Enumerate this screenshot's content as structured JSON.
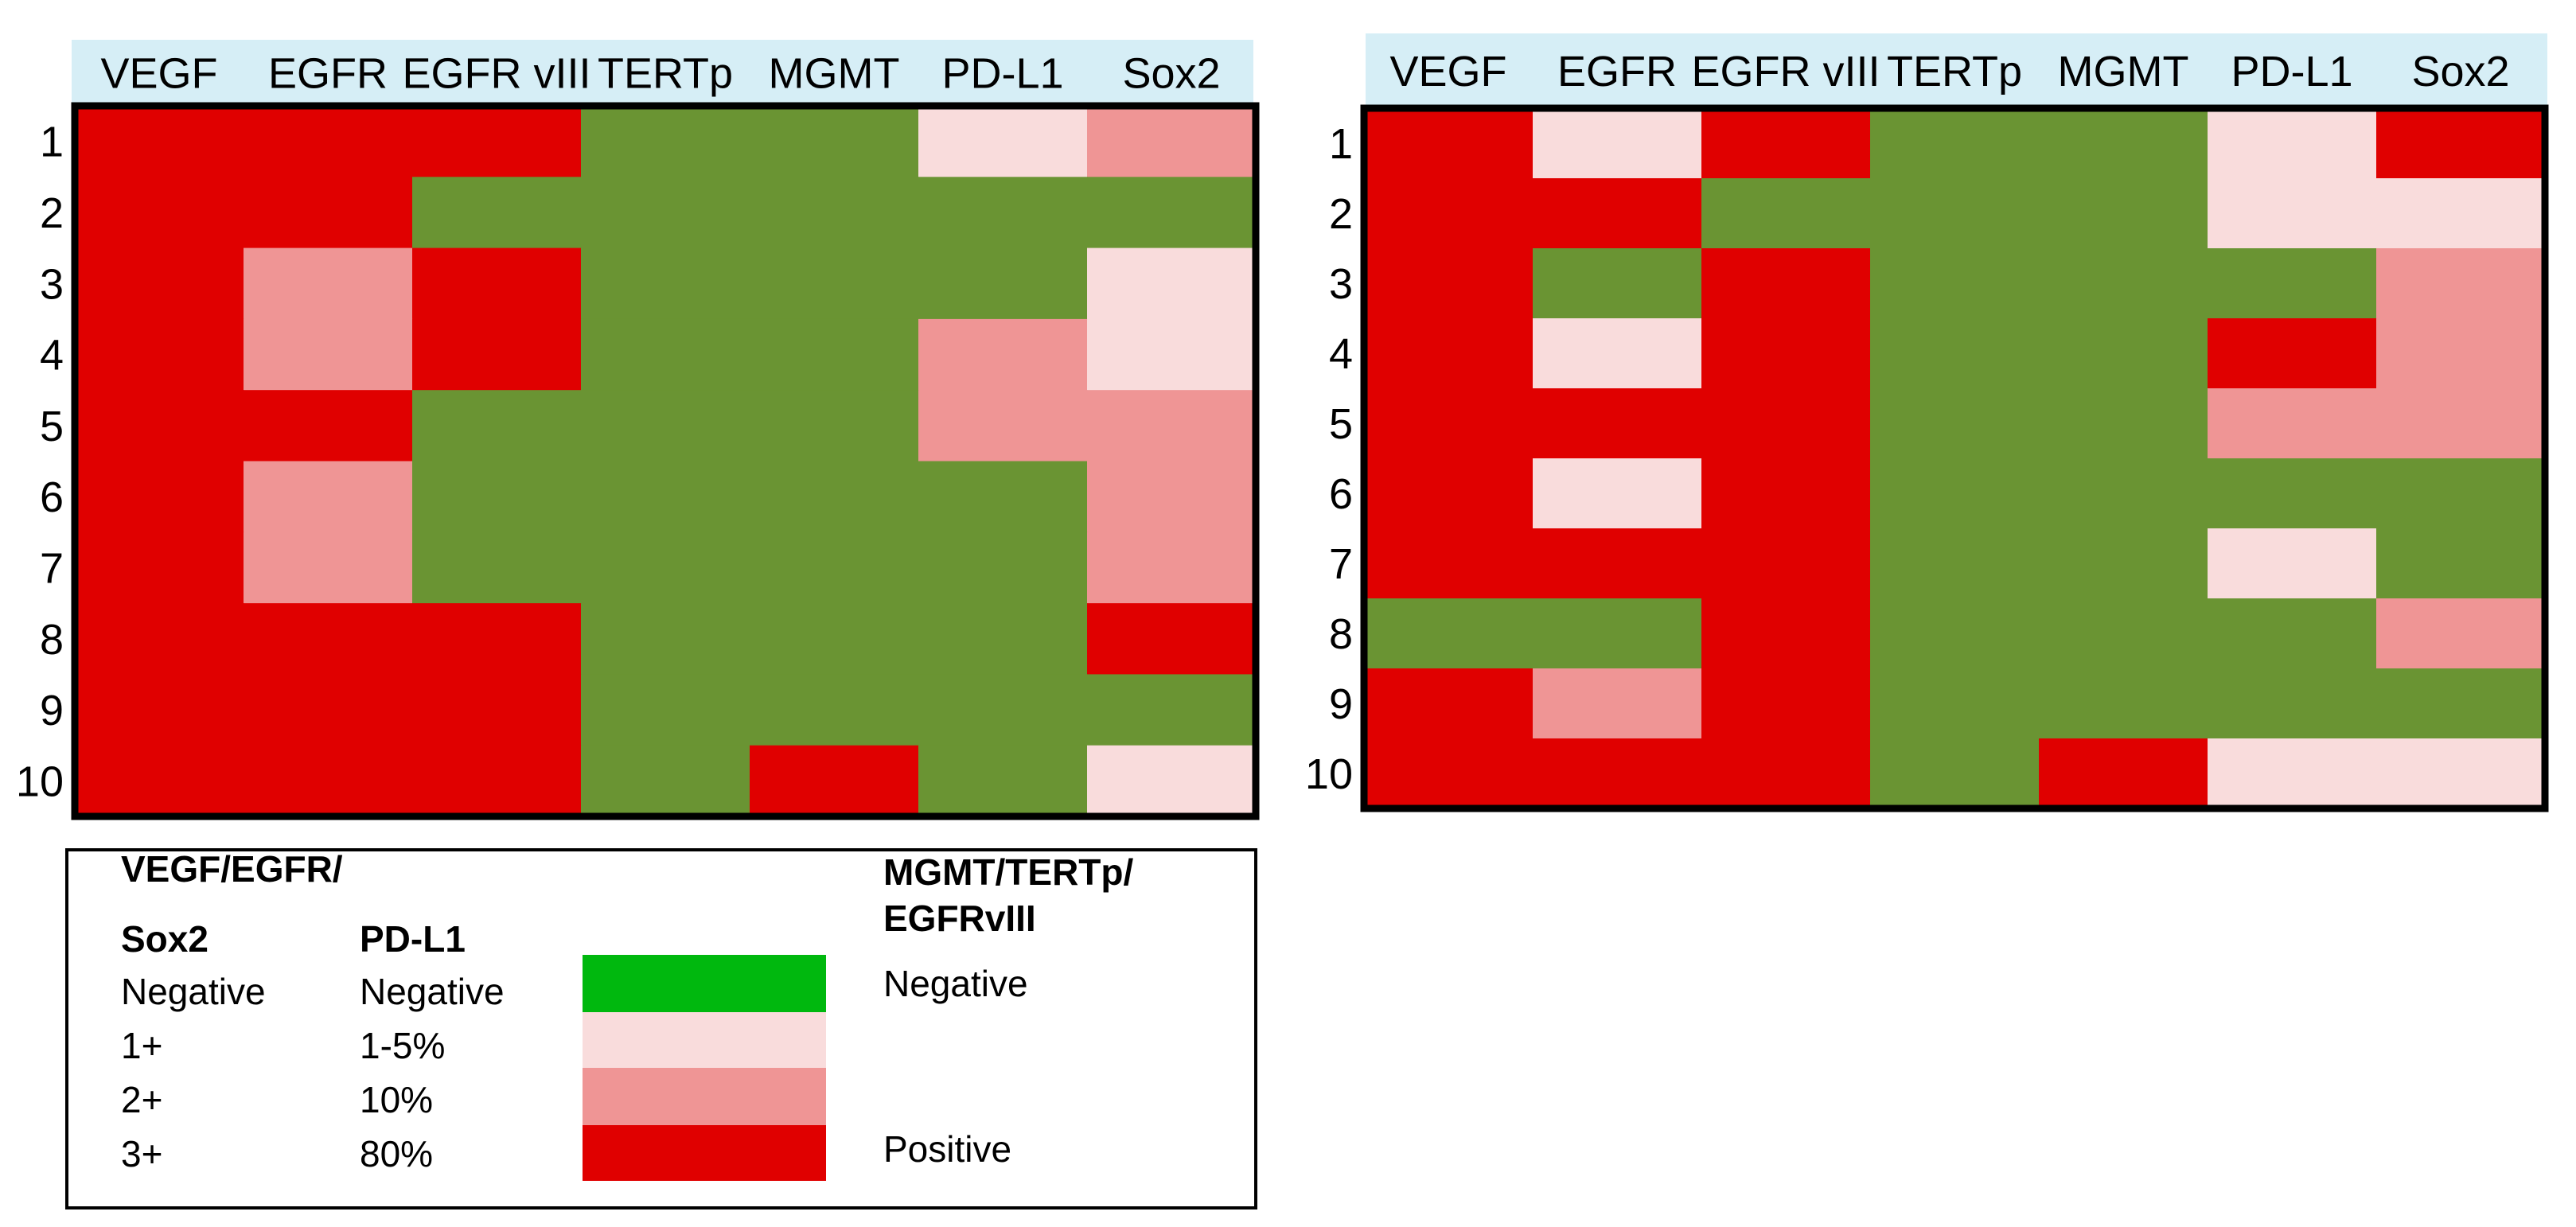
{
  "chart_data": [
    {
      "type": "heatmap",
      "columns": [
        "VEGF",
        "EGFR",
        "EGFR vIII",
        "TERTp",
        "MGMT",
        "PD-L1",
        "Sox2"
      ],
      "rows": [
        "1",
        "2",
        "3",
        "4",
        "5",
        "6",
        "7",
        "8",
        "9",
        "10"
      ],
      "values": [
        [
          "3+",
          "3+",
          "Positive",
          "Negative",
          "Negative",
          "1-5%",
          "2+"
        ],
        [
          "3+",
          "3+",
          "Negative",
          "Negative",
          "Negative",
          "Negative",
          "Negative"
        ],
        [
          "3+",
          "2+",
          "Positive",
          "Negative",
          "Negative",
          "Negative",
          "1+"
        ],
        [
          "3+",
          "2+",
          "Positive",
          "Negative",
          "Negative",
          "10%",
          "1+"
        ],
        [
          "3+",
          "3+",
          "Negative",
          "Negative",
          "Negative",
          "10%",
          "2+"
        ],
        [
          "3+",
          "2+",
          "Negative",
          "Negative",
          "Negative",
          "Negative",
          "2+"
        ],
        [
          "3+",
          "2+",
          "Negative",
          "Negative",
          "Negative",
          "Negative",
          "2+"
        ],
        [
          "3+",
          "3+",
          "Positive",
          "Negative",
          "Negative",
          "Negative",
          "3+"
        ],
        [
          "3+",
          "3+",
          "Positive",
          "Negative",
          "Negative",
          "Negative",
          "Negative"
        ],
        [
          "3+",
          "3+",
          "Positive",
          "Negative",
          "Positive",
          "Negative",
          "1+"
        ]
      ]
    },
    {
      "type": "heatmap",
      "columns": [
        "VEGF",
        "EGFR",
        "EGFR vIII",
        "TERTp",
        "MGMT",
        "PD-L1",
        "Sox2"
      ],
      "rows": [
        "1",
        "2",
        "3",
        "4",
        "5",
        "6",
        "7",
        "8",
        "9",
        "10"
      ],
      "values": [
        [
          "3+",
          "1+",
          "Positive",
          "Negative",
          "Negative",
          "1-5%",
          "3+"
        ],
        [
          "3+",
          "3+",
          "Negative",
          "Negative",
          "Negative",
          "1-5%",
          "1+"
        ],
        [
          "3+",
          "Negative",
          "Positive",
          "Negative",
          "Negative",
          "Negative",
          "2+"
        ],
        [
          "3+",
          "1+",
          "Positive",
          "Negative",
          "Negative",
          "80%",
          "2+"
        ],
        [
          "3+",
          "3+",
          "Positive",
          "Negative",
          "Negative",
          "10%",
          "2+"
        ],
        [
          "3+",
          "1+",
          "Positive",
          "Negative",
          "Negative",
          "Negative",
          "Negative"
        ],
        [
          "3+",
          "3+",
          "Positive",
          "Negative",
          "Negative",
          "1-5%",
          "Negative"
        ],
        [
          "Negative",
          "Negative",
          "Positive",
          "Negative",
          "Negative",
          "Negative",
          "2+"
        ],
        [
          "3+",
          "2+",
          "Positive",
          "Negative",
          "Negative",
          "Negative",
          "Negative"
        ],
        [
          "3+",
          "3+",
          "Positive",
          "Negative",
          "Positive",
          "1-5%",
          "1+"
        ]
      ]
    }
  ],
  "legend": {
    "group1_header_line1": "VEGF/EGFR/",
    "group1_header_line2": "Sox2",
    "group2_header": "PD-L1",
    "group3_header_line1": "MGMT/TERTp/",
    "group3_header_line2": "EGFRvIII",
    "levels": [
      {
        "group1": "Negative",
        "group2": "Negative",
        "group3": "Negative",
        "color": "#00b80e"
      },
      {
        "group1": "1+",
        "group2": "1-5%",
        "group3": "",
        "color": "#f9dcdc"
      },
      {
        "group1": "2+",
        "group2": "10%",
        "group3": "",
        "color": "#ef9595"
      },
      {
        "group1": "3+",
        "group2": "80%",
        "group3": "Positive",
        "color": "#e00000"
      }
    ]
  },
  "colors": {
    "negative_cell": "#6a9433",
    "level1": "#f9dcdc",
    "level2": "#ef9595",
    "level3": "#e00000",
    "header_band": "#d6eef6"
  }
}
